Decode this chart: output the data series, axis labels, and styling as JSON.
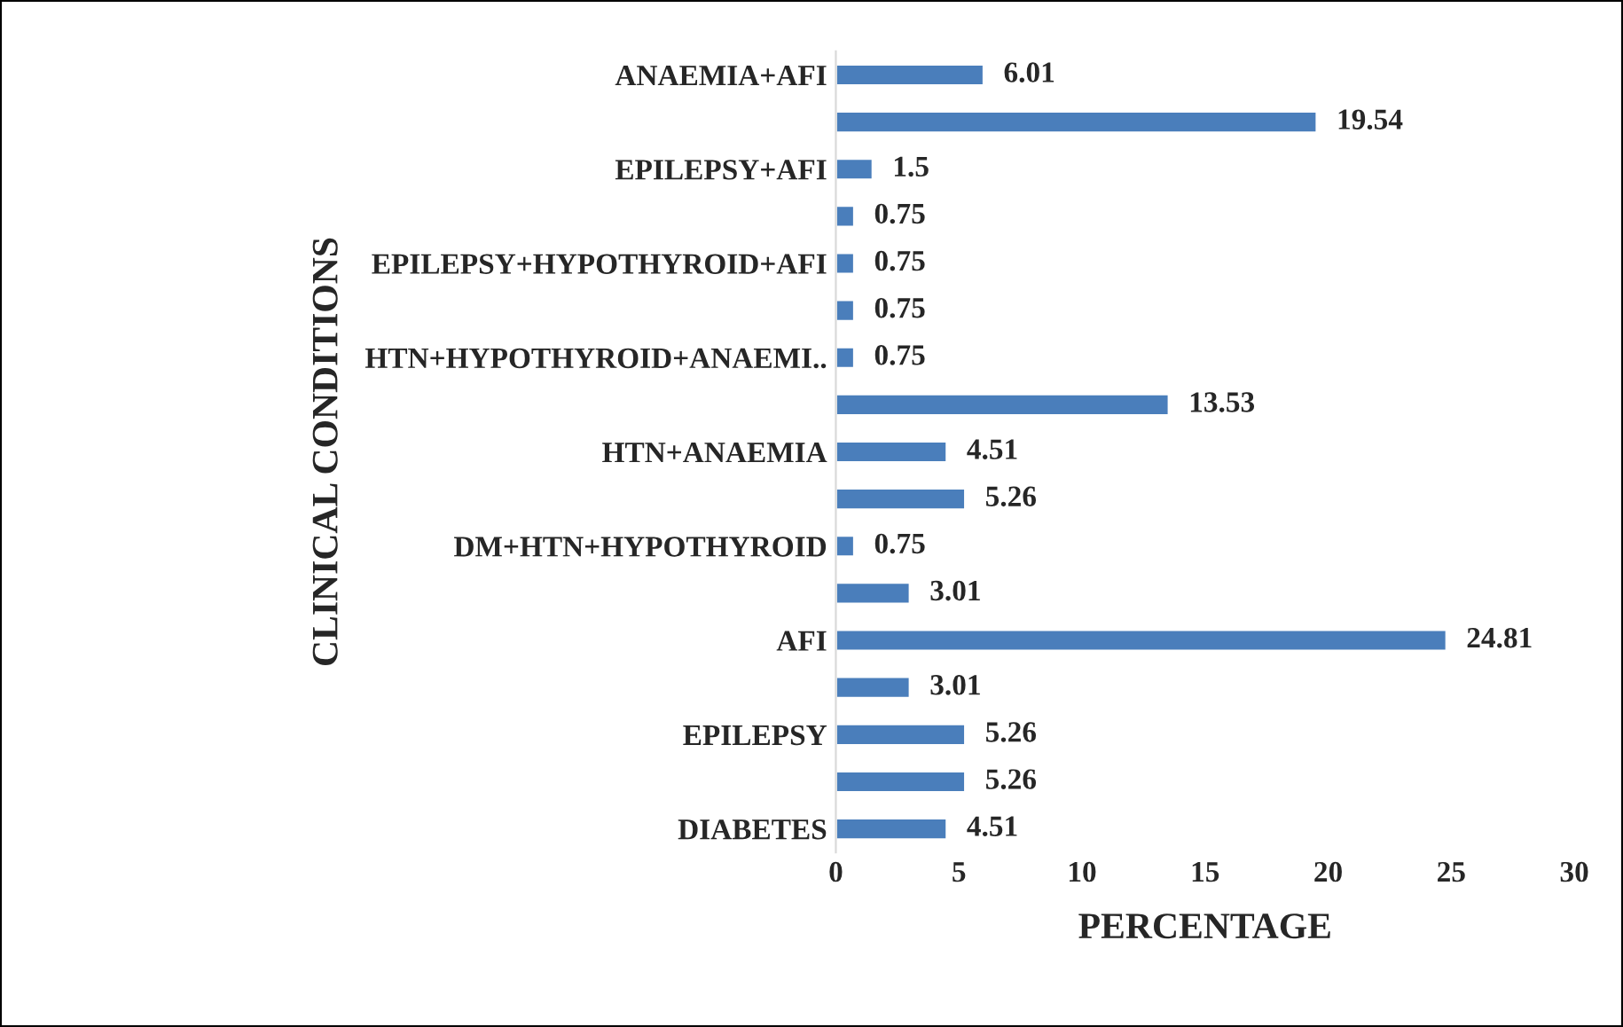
{
  "chart_data": {
    "type": "bar",
    "orientation": "horizontal",
    "xlabel": "PERCENTAGE",
    "ylabel": "CLINICAL CONDITIONS",
    "categories": [
      "ANAEMIA+AFI",
      null,
      "EPILEPSY+AFI",
      null,
      "EPILEPSY+HYPOTHYROID+AFI",
      null,
      "HTN+HYPOTHYROID+ANAEMI..",
      null,
      "HTN+ANAEMIA",
      null,
      "DM+HTN+HYPOTHYROID",
      null,
      "AFI",
      null,
      "EPILEPSY",
      null,
      "DIABETES"
    ],
    "values": [
      6.01,
      19.54,
      1.5,
      0.75,
      0.75,
      0.75,
      0.75,
      13.53,
      4.51,
      5.26,
      0.75,
      3.01,
      24.81,
      3.01,
      5.26,
      5.26,
      4.51
    ],
    "color": "#4a7ebb",
    "xlim": [
      0,
      30
    ],
    "xticks": [
      0,
      5,
      10,
      15,
      20,
      25,
      30
    ],
    "grid": false,
    "legend": false,
    "data_labels": true
  }
}
